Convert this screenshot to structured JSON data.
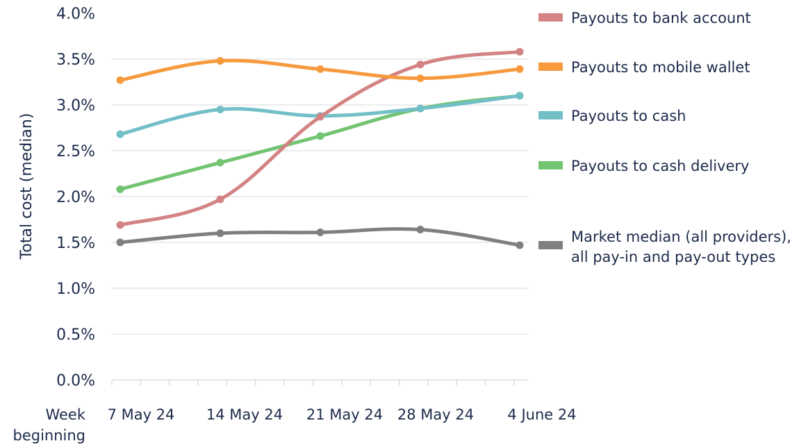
{
  "chart_data": {
    "type": "line",
    "title": "",
    "xlabel": "Week beginning",
    "xlabel_lines": [
      "Week",
      "beginning"
    ],
    "ylabel": "Total cost (median)",
    "ylim": [
      0,
      4.0
    ],
    "yticks": [
      "0.0%",
      "0.5%",
      "1.0%",
      "1.5%",
      "2.0%",
      "2.5%",
      "3.0%",
      "3.5%",
      "4.0%"
    ],
    "grid": true,
    "legend_position": "right",
    "categories": [
      "7 May 24",
      "14 May 24",
      "21 May 24",
      "28 May 24",
      "4 June 24"
    ],
    "series": [
      {
        "name": "Payouts to bank account",
        "color": "#d38383",
        "values": [
          1.69,
          1.97,
          2.87,
          3.44,
          3.58
        ]
      },
      {
        "name": "Payouts to mobile wallet",
        "color": "#f79a3e",
        "values": [
          3.27,
          3.48,
          3.39,
          3.29,
          3.39
        ]
      },
      {
        "name": "Payouts to cash",
        "color": "#72bfc7",
        "values": [
          2.68,
          2.95,
          2.88,
          2.96,
          3.1
        ]
      },
      {
        "name": "Payouts to cash delivery",
        "color": "#72c472",
        "values": [
          2.08,
          2.37,
          2.66,
          2.96,
          3.1
        ]
      },
      {
        "name": "Market median (all providers), all pay-in and pay-out types",
        "legend_lines": [
          "Market median (all providers),",
          "all pay-in and pay-out types"
        ],
        "color": "#7f7f7f",
        "values": [
          1.5,
          1.6,
          1.61,
          1.64,
          1.47
        ]
      }
    ]
  }
}
